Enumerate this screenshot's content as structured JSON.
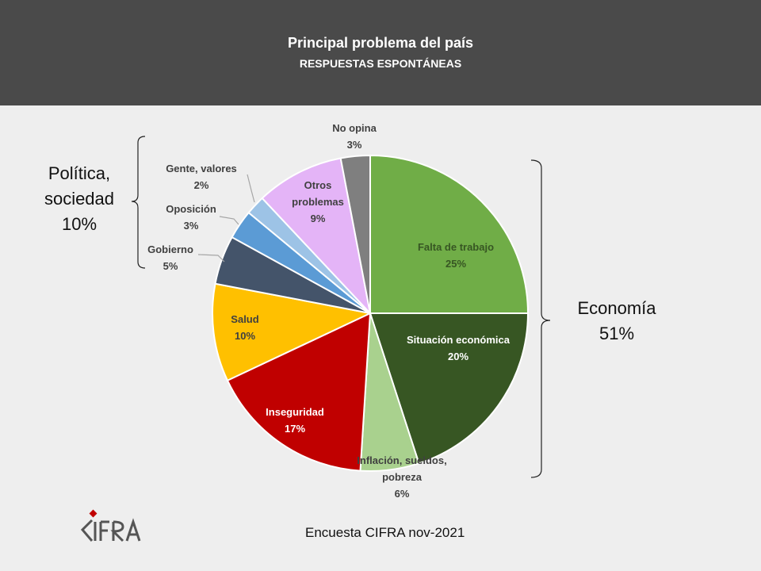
{
  "header": {
    "title": "Principal problema del país",
    "subtitle": "RESPUESTAS ESPONTÁNEAS"
  },
  "chart_data": {
    "type": "pie",
    "title": "Principal problema del país",
    "subtitle": "RESPUESTAS ESPONTÁNEAS",
    "slices": [
      {
        "label": "Falta de trabajo",
        "value": 25,
        "value_label": "25%",
        "color": "#70ad47"
      },
      {
        "label": "Situación económica",
        "value": 20,
        "value_label": "20%",
        "color": "#375623"
      },
      {
        "label": "Inflación, sueldos, pobreza",
        "value": 6,
        "value_label": "6%",
        "color": "#a9d18e"
      },
      {
        "label": "Inseguridad",
        "value": 17,
        "value_label": "17%",
        "color": "#c00000"
      },
      {
        "label": "Salud",
        "value": 10,
        "value_label": "10%",
        "color": "#ffc000"
      },
      {
        "label": "Gobierno",
        "value": 5,
        "value_label": "5%",
        "color": "#44546a"
      },
      {
        "label": "Oposición",
        "value": 3,
        "value_label": "3%",
        "color": "#5b9bd5"
      },
      {
        "label": "Gente, valores",
        "value": 2,
        "value_label": "2%",
        "color": "#9dc3e6"
      },
      {
        "label": "Otros problemas",
        "value": 9,
        "value_label": "9%",
        "color": "#e4b4f7"
      },
      {
        "label": "No opina",
        "value": 3,
        "value_label": "3%",
        "color": "#7f7f7f"
      }
    ],
    "groups": [
      {
        "label": "Política, sociedad",
        "value_label": "10%"
      },
      {
        "label": "Economía",
        "value_label": "51%"
      }
    ]
  },
  "footer": {
    "source": "Encuesta CIFRA nov-2021",
    "logo_text": "CIFRA"
  }
}
